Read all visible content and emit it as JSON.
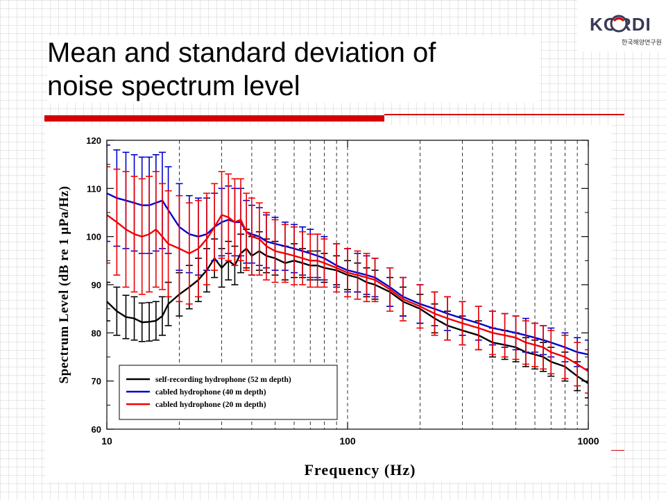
{
  "slide": {
    "title_line1": "Mean and standard deviation of",
    "title_line2": "noise spectrum level"
  },
  "logo": {
    "text": "KORDI",
    "subtitle": "한국해양연구원"
  },
  "colors": {
    "accent_red": "#d40000",
    "series_black": "#000000",
    "series_blue": "#0000cc",
    "series_red": "#ee0000"
  },
  "chart_data": {
    "type": "line",
    "xlabel": "Frequency (Hz)",
    "ylabel": "Spectrum Level (dB re 1 μPa/Hz)",
    "x_scale": "log",
    "xlim": [
      10,
      1000
    ],
    "ylim": [
      60,
      120
    ],
    "x_ticks": [
      "10",
      "100",
      "1000"
    ],
    "y_ticks": [
      "60",
      "70",
      "80",
      "90",
      "100",
      "110",
      "120"
    ],
    "grid": "dashed vertical at log minor ticks",
    "legend_position": "lower-left",
    "series": [
      {
        "name": "self-recording hydrophone (52 m depth)",
        "color": "#000000",
        "x": [
          10,
          11,
          12,
          13,
          14,
          15,
          16,
          17,
          18,
          20,
          22,
          24,
          26,
          28,
          30,
          32,
          34,
          36,
          38,
          40,
          43,
          46,
          50,
          55,
          60,
          65,
          70,
          75,
          80,
          90,
          100,
          110,
          120,
          130,
          150,
          170,
          200,
          230,
          260,
          300,
          350,
          400,
          450,
          500,
          550,
          600,
          650,
          700,
          800,
          900,
          1000
        ],
        "y": [
          86.5,
          84.5,
          83.3,
          83.0,
          82.2,
          82.3,
          82.5,
          83.5,
          86,
          88,
          89.5,
          91,
          93,
          95.5,
          93.5,
          95,
          94,
          96.5,
          97.5,
          96,
          97,
          96,
          95.5,
          94.5,
          95,
          94.5,
          94,
          94,
          93.5,
          93,
          92,
          91.5,
          90.5,
          90,
          88.5,
          86.5,
          85,
          83,
          81.5,
          80.5,
          79.5,
          78,
          77.5,
          77,
          76,
          75.5,
          75,
          74,
          73,
          71,
          69.5
        ],
        "sd": [
          4,
          5,
          4.5,
          4.5,
          4,
          4,
          4,
          4,
          4.5,
          4.5,
          4.5,
          4.5,
          4.5,
          4,
          4,
          4,
          4,
          4,
          4,
          4,
          4,
          3.5,
          3.5,
          3.5,
          3.5,
          3,
          3,
          3,
          3,
          3,
          3,
          3,
          3,
          3,
          3,
          3,
          3,
          3,
          3,
          3,
          3,
          3,
          3,
          3,
          3,
          3,
          3,
          3,
          3,
          3,
          3
        ]
      },
      {
        "name": "cabled hydrophone (40 m depth)",
        "color": "#0000cc",
        "x": [
          10,
          11,
          12,
          13,
          14,
          15,
          16,
          17,
          18,
          20,
          22,
          24,
          26,
          28,
          30,
          32,
          34,
          36,
          38,
          40,
          43,
          46,
          50,
          55,
          60,
          65,
          70,
          75,
          80,
          90,
          100,
          110,
          120,
          130,
          150,
          170,
          200,
          230,
          260,
          300,
          350,
          400,
          450,
          500,
          550,
          600,
          650,
          700,
          800,
          900,
          1000
        ],
        "y": [
          109,
          108,
          107.5,
          107,
          106.5,
          106.5,
          107,
          107.5,
          105.5,
          102,
          100.5,
          100,
          100.5,
          102,
          103,
          103.5,
          103,
          103,
          101,
          100.5,
          100,
          99,
          98.5,
          98,
          97.5,
          97,
          96.5,
          96,
          95.5,
          94,
          93,
          92.5,
          92,
          91.5,
          89.5,
          87.5,
          86,
          85,
          84,
          83,
          82,
          81,
          80.5,
          80,
          79.5,
          79,
          78.5,
          78,
          77,
          76,
          75.5
        ],
        "sd": [
          10,
          10,
          10,
          10,
          10,
          10,
          10,
          10,
          9,
          9,
          8,
          8,
          7.5,
          7,
          7,
          7,
          7,
          7,
          6.5,
          6,
          6,
          5.5,
          5.5,
          5,
          5,
          5,
          5,
          4.5,
          4.5,
          4.5,
          4.5,
          4,
          4,
          4,
          4,
          4,
          4,
          3.5,
          3.5,
          3.5,
          3.5,
          3.5,
          3.5,
          3.5,
          3.5,
          3,
          3,
          3,
          3,
          3,
          3
        ]
      },
      {
        "name": "cabled hydrophone (20 m depth)",
        "color": "#ee0000",
        "x": [
          10,
          11,
          12,
          13,
          14,
          15,
          16,
          17,
          18,
          20,
          22,
          24,
          26,
          28,
          30,
          32,
          34,
          36,
          38,
          40,
          43,
          46,
          50,
          55,
          60,
          65,
          70,
          75,
          80,
          90,
          100,
          110,
          120,
          130,
          150,
          170,
          200,
          230,
          260,
          300,
          350,
          400,
          450,
          500,
          550,
          600,
          650,
          700,
          800,
          900,
          1000
        ],
        "y": [
          104.5,
          103,
          101.5,
          100.5,
          100,
          100.5,
          101.5,
          100,
          98.5,
          97.5,
          96.5,
          97.5,
          99.5,
          102,
          104.5,
          104,
          103,
          103.5,
          101,
          100,
          99.5,
          98,
          97,
          96.5,
          96,
          95.5,
          95,
          95,
          94.5,
          93.5,
          92.5,
          92,
          91.5,
          91,
          89,
          87,
          85.5,
          84,
          83,
          82,
          81,
          80,
          79.5,
          79,
          78,
          77.5,
          77,
          76,
          75,
          73.5,
          72
        ],
        "sd": [
          10,
          11,
          12,
          12,
          12,
          12,
          12,
          11,
          11,
          11,
          10.5,
          10,
          9.5,
          9,
          9,
          9,
          9,
          8.5,
          8,
          8,
          7.5,
          7,
          6.5,
          6,
          6,
          5.5,
          5.5,
          5.5,
          5,
          5,
          5,
          5,
          5,
          4.5,
          4.5,
          4.5,
          4.5,
          4.5,
          4.5,
          4.5,
          4.5,
          4.5,
          4.5,
          4.5,
          4.5,
          4.5,
          4.5,
          4.5,
          4.5,
          4.5,
          4.5
        ]
      }
    ]
  }
}
